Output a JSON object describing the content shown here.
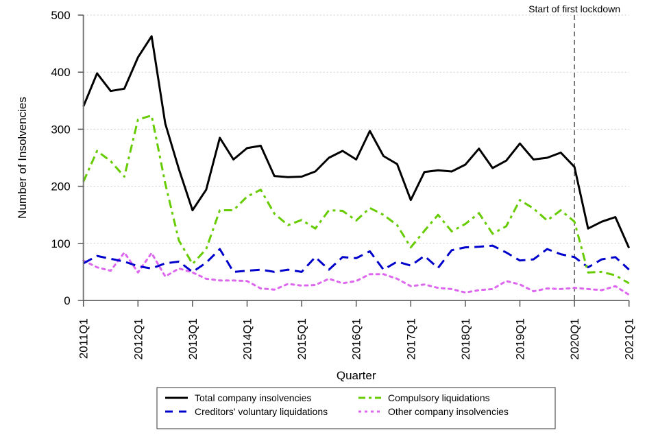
{
  "chart_data": {
    "type": "line",
    "title": "",
    "xlabel": "Quarter",
    "ylabel": "Number of Insolvencies",
    "ylim": [
      0,
      500
    ],
    "yticks": [
      "0",
      "100",
      "200",
      "300",
      "400",
      "500"
    ],
    "ytick_values": [
      0,
      100,
      200,
      300,
      400,
      500
    ],
    "grid": "horizontal dotted",
    "legend_position": "bottom-center",
    "x": [
      "2011Q1",
      "2011Q2",
      "2011Q3",
      "2011Q4",
      "2012Q1",
      "2012Q2",
      "2012Q3",
      "2012Q4",
      "2013Q1",
      "2013Q2",
      "2013Q3",
      "2013Q4",
      "2014Q1",
      "2014Q2",
      "2014Q3",
      "2014Q4",
      "2015Q1",
      "2015Q2",
      "2015Q3",
      "2015Q4",
      "2016Q1",
      "2016Q2",
      "2016Q3",
      "2016Q4",
      "2017Q1",
      "2017Q2",
      "2017Q3",
      "2017Q4",
      "2018Q1",
      "2018Q2",
      "2018Q3",
      "2018Q4",
      "2019Q1",
      "2019Q2",
      "2019Q3",
      "2019Q4",
      "2020Q1",
      "2020Q2",
      "2020Q3",
      "2020Q4",
      "2021Q1"
    ],
    "xticks": [
      "2011Q1",
      "2012Q1",
      "2013Q1",
      "2014Q1",
      "2015Q1",
      "2016Q1",
      "2017Q1",
      "2018Q1",
      "2019Q1",
      "2020Q1",
      "2021Q1"
    ],
    "series": [
      {
        "name": "Total company insolvencies",
        "color": "#000000",
        "style": "solid",
        "values": [
          340,
          398,
          367,
          371,
          426,
          463,
          310,
          230,
          158,
          194,
          285,
          247,
          267,
          271,
          218,
          216,
          217,
          226,
          250,
          262,
          247,
          297,
          253,
          239,
          176,
          225,
          228,
          226,
          238,
          266,
          232,
          245,
          275,
          247,
          250,
          259,
          234,
          126,
          138,
          146,
          92
        ]
      },
      {
        "name": "Compulsory liquidations",
        "color": "#66cc00",
        "style": "dashdot",
        "values": [
          208,
          262,
          244,
          217,
          317,
          324,
          205,
          105,
          64,
          90,
          158,
          158,
          182,
          194,
          152,
          132,
          141,
          126,
          158,
          157,
          140,
          162,
          150,
          132,
          93,
          122,
          150,
          121,
          134,
          153,
          117,
          130,
          176,
          161,
          140,
          158,
          138,
          49,
          50,
          44,
          30
        ]
      },
      {
        "name": "Creditors' voluntary liquidations",
        "color": "#0000cc",
        "style": "dashed",
        "values": [
          65,
          78,
          73,
          68,
          60,
          56,
          65,
          68,
          50,
          66,
          90,
          50,
          52,
          54,
          50,
          54,
          50,
          76,
          54,
          76,
          74,
          86,
          54,
          68,
          61,
          78,
          57,
          88,
          93,
          94,
          96,
          84,
          70,
          72,
          90,
          81,
          76,
          58,
          72,
          76,
          54
        ]
      },
      {
        "name": "Other company insolvencies",
        "color": "#dd66ee",
        "style": "dotted",
        "values": [
          70,
          58,
          52,
          84,
          49,
          83,
          42,
          56,
          49,
          38,
          35,
          35,
          34,
          21,
          19,
          29,
          26,
          27,
          38,
          30,
          34,
          46,
          46,
          38,
          25,
          28,
          22,
          20,
          14,
          18,
          20,
          34,
          28,
          16,
          21,
          20,
          22,
          20,
          18,
          25,
          10
        ]
      }
    ],
    "annotations": [
      {
        "text": "Start of first lockdown",
        "x": "2020Q1",
        "line_style": "dashed",
        "color": "#555555"
      }
    ]
  },
  "legend": {
    "items": [
      {
        "label": "Total company insolvencies",
        "series": 0
      },
      {
        "label": "Creditors' voluntary liquidations",
        "series": 2
      },
      {
        "label": "Compulsory liquidations",
        "series": 1
      },
      {
        "label": "Other company insolvencies",
        "series": 3
      }
    ]
  }
}
